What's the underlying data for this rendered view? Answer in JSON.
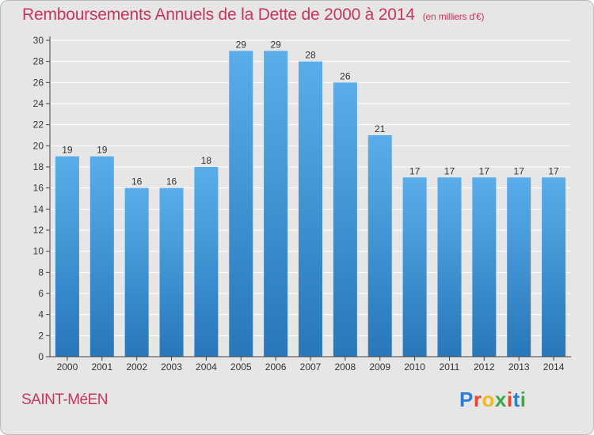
{
  "header": {
    "title": "Remboursements Annuels de la Dette de 2000 à 2014",
    "unit": "(en milliers d'€)"
  },
  "footer": {
    "commune": "SAINT-MéEN",
    "logo_letters": [
      "P",
      "r",
      "o",
      "x",
      "i",
      "t",
      "i"
    ],
    "logo_colors": [
      "#2a7fd4",
      "#e8462a",
      "#f2b81c",
      "#3aa84a",
      "#e8462a",
      "#2a7fd4",
      "#3aa84a"
    ]
  },
  "colors": {
    "bar_top": "#5aadea",
    "bar_bottom": "#2777b9",
    "grid": "#ffffff",
    "axis": "#444444",
    "title": "#c9365b"
  },
  "chart_data": {
    "type": "bar",
    "title": "Remboursements Annuels de la Dette de 2000 à 2014",
    "subtitle": "(en milliers d'€)",
    "categories": [
      "2000",
      "2001",
      "2002",
      "2003",
      "2004",
      "2005",
      "2006",
      "2007",
      "2008",
      "2009",
      "2010",
      "2011",
      "2012",
      "2013",
      "2014"
    ],
    "values": [
      19,
      19,
      16,
      16,
      18,
      29,
      29,
      28,
      26,
      21,
      17,
      17,
      17,
      17,
      17
    ],
    "ylim": [
      0,
      30
    ],
    "yticks": [
      0,
      2,
      4,
      6,
      8,
      10,
      12,
      14,
      16,
      18,
      20,
      22,
      24,
      26,
      28,
      30
    ],
    "grid": true
  }
}
